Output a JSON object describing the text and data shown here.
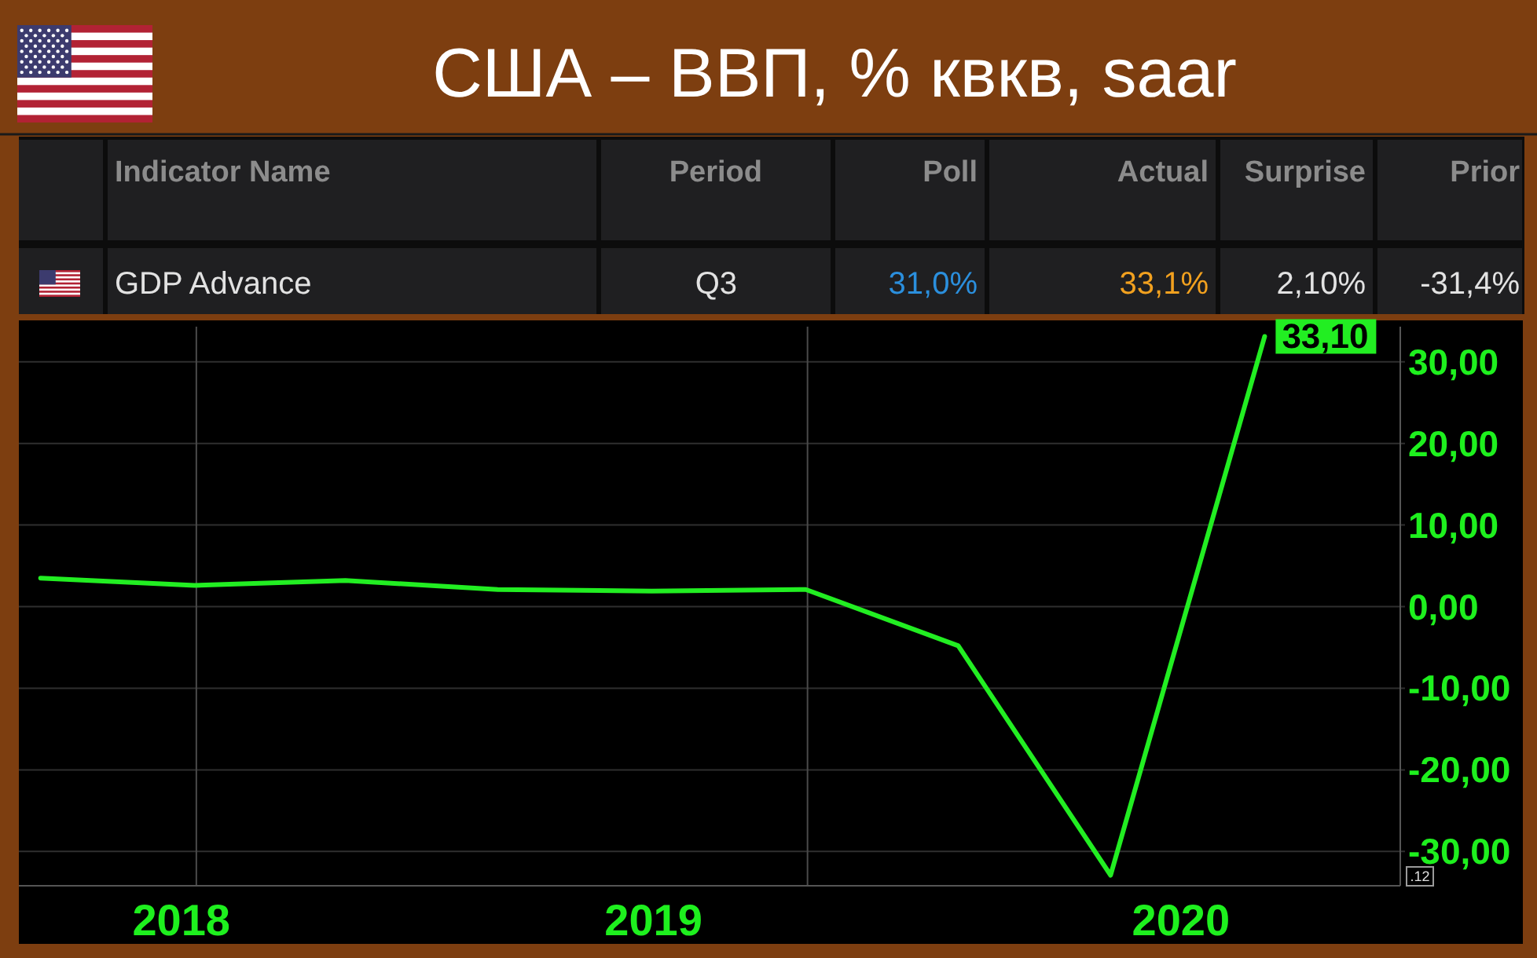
{
  "chart_data": {
    "type": "line",
    "title": "США – ВВП, % квкв, saar",
    "annotations": [
      "Indicator Name",
      "Period",
      "Poll",
      "Actual",
      "Surprise",
      "Prior",
      "GDP Advance",
      "Q3",
      "31,0%",
      "33,1%",
      "2,10%",
      "-31,4%",
      ".12"
    ],
    "x": [
      "2018-09-30",
      "2018-12-31",
      "2019-03-31",
      "2019-06-30",
      "2019-09-30",
      "2019-12-31",
      "2020-03-31",
      "2020-06-30",
      "2020-09-30"
    ],
    "values": [
      3.5,
      2.6,
      3.2,
      2.1,
      1.9,
      2.1,
      -4.8,
      -32.9,
      33.1
    ],
    "color": "#22ee22",
    "value_labels": [
      null,
      null,
      null,
      null,
      null,
      null,
      null,
      null,
      "33,10"
    ],
    "xlim": [
      "2018-09-17",
      "2020-12-20"
    ],
    "xticks": [
      {
        "value": "2018-12-23",
        "label": "2018"
      },
      {
        "value": "2019-10-01",
        "label": "2019"
      },
      {
        "value": "2020-08-11",
        "label": "2020"
      }
    ],
    "ylim": [
      -34.2,
      34.3
    ],
    "yticks": [
      {
        "value": -30,
        "label": "-30,00"
      },
      {
        "value": -20,
        "label": "-20,00"
      },
      {
        "value": -10,
        "label": "-10,00"
      },
      {
        "value": 0,
        "label": "0,00"
      },
      {
        "value": 10,
        "label": "10,00"
      },
      {
        "value": 20,
        "label": "20,00"
      },
      {
        "value": 30,
        "label": "30,00"
      }
    ],
    "grid": "y",
    "ref_lines": [
      {
        "axis": "x",
        "value": "2019-01-01",
        "color": "#4a4a4a"
      },
      {
        "axis": "x",
        "value": "2020-01-01",
        "color": "#4a4a4a"
      }
    ]
  }
}
